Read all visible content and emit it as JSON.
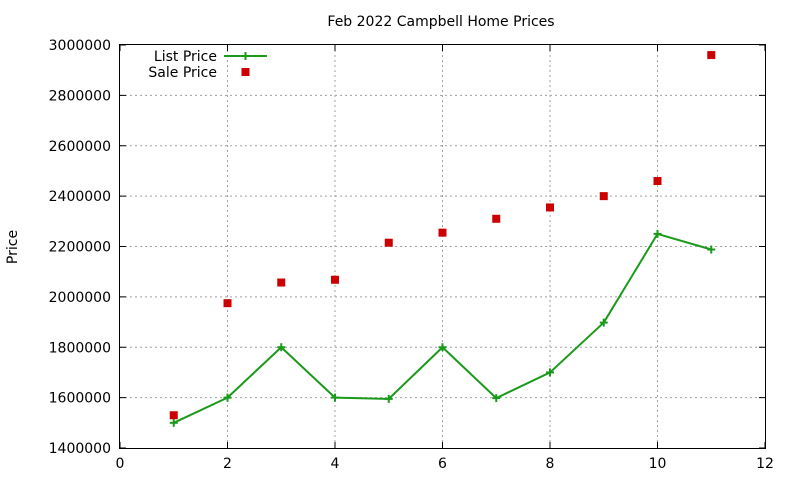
{
  "chart_data": {
    "type": "line",
    "title": "Feb 2022 Campbell Home Prices",
    "xlabel": "",
    "ylabel": "Price",
    "xlim": [
      0,
      12
    ],
    "ylim": [
      1400000,
      3000000
    ],
    "xticks": [
      "0",
      "2",
      "4",
      "6",
      "8",
      "10",
      "12"
    ],
    "yticks": [
      "1400000",
      "1600000",
      "1800000",
      "2000000",
      "2200000",
      "2400000",
      "2600000",
      "2800000",
      "3000000"
    ],
    "grid": true,
    "legend_position": "top-left",
    "series": [
      {
        "name": "List Price",
        "style": "lines+points",
        "marker": "plus",
        "color": "#1a9a1a",
        "x": [
          1,
          2,
          3,
          4,
          5,
          6,
          7,
          8,
          9,
          10,
          11
        ],
        "y": [
          1500000,
          1600000,
          1800000,
          1600000,
          1595000,
          1800000,
          1598000,
          1700000,
          1898000,
          2250000,
          2188000
        ]
      },
      {
        "name": "Sale Price",
        "style": "points",
        "marker": "square",
        "color": "#cc0000",
        "x": [
          1,
          2,
          3,
          4,
          5,
          6,
          7,
          8,
          9,
          10,
          11
        ],
        "y": [
          1530000,
          1975000,
          2057000,
          2068000,
          2215000,
          2255000,
          2310000,
          2355000,
          2400000,
          2460000,
          2960000
        ]
      }
    ]
  }
}
